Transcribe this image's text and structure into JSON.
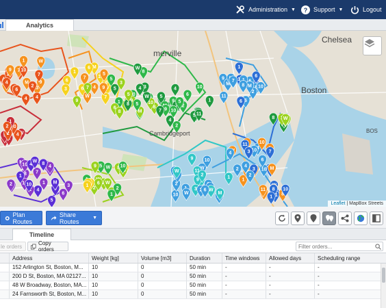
{
  "nav": {
    "administration": "Administration",
    "support": "Support",
    "logout": "Logout"
  },
  "tabs": {
    "analytics": "Analytics"
  },
  "map": {
    "labels": {
      "somerville": "merville",
      "chelsea": "Chelsea",
      "cambridgeport": "Cambridgeport",
      "boston": "Boston",
      "bos": "BOS"
    },
    "attribution_leaflet": "Leaflet",
    "attribution_tiles": "| MapBox Streets",
    "route_colors": [
      "#e8541c",
      "#f6921e",
      "#f6d21e",
      "#9bd21e",
      "#2fb84a",
      "#1f9a3f",
      "#31c7c7",
      "#3e9fe0",
      "#2d6fd6",
      "#5b2fd6",
      "#8b3ac9",
      "#c82e3a"
    ],
    "pins": [
      {
        "n": "4",
        "c": 0
      },
      {
        "n": "2",
        "c": 0
      },
      {
        "n": "8",
        "c": 0
      },
      {
        "n": "11",
        "c": 11
      },
      {
        "n": "7",
        "c": 4
      },
      {
        "n": "3",
        "c": 4
      },
      {
        "n": "9",
        "c": 5
      },
      {
        "n": "6",
        "c": 7
      },
      {
        "n": "W",
        "c": 7
      },
      {
        "n": "1",
        "c": 8
      },
      {
        "n": "7",
        "c": 9
      },
      {
        "n": "11",
        "c": 9
      },
      {
        "n": "5",
        "c": 3
      },
      {
        "n": "M",
        "c": 6
      },
      {
        "n": "3",
        "c": 8
      },
      {
        "n": "M",
        "c": 7
      }
    ]
  },
  "toolbar": {
    "plan_routes": "Plan Routes",
    "share_routes": "Share Routes"
  },
  "timeline": {
    "tab": "Timeline",
    "delete_orders": "le orders",
    "copy_orders": "Copy orders",
    "filter_placeholder": "Filter orders..."
  },
  "table": {
    "columns": [
      "Address",
      "Weight [kg]",
      "Volume [m3]",
      "Duration",
      "Time windows",
      "Allowed days",
      "Scheduling range"
    ],
    "rows": [
      {
        "address": "152 Arlington St, Boston, M...",
        "weight": "10",
        "volume": "0",
        "duration": "50 min",
        "time_windows": "-",
        "allowed_days": "-",
        "scheduling_range": "-"
      },
      {
        "address": "200 D St, Boston, MA 02127...",
        "weight": "10",
        "volume": "0",
        "duration": "50 min",
        "time_windows": "-",
        "allowed_days": "-",
        "scheduling_range": "-"
      },
      {
        "address": "48 W Broadway, Boston, MA...",
        "weight": "10",
        "volume": "0",
        "duration": "50 min",
        "time_windows": "-",
        "allowed_days": "-",
        "scheduling_range": "-"
      },
      {
        "address": "24 Farnsworth St, Boston, M...",
        "weight": "10",
        "volume": "0",
        "duration": "50 min",
        "time_windows": "-",
        "allowed_days": "-",
        "scheduling_range": "-"
      }
    ]
  }
}
